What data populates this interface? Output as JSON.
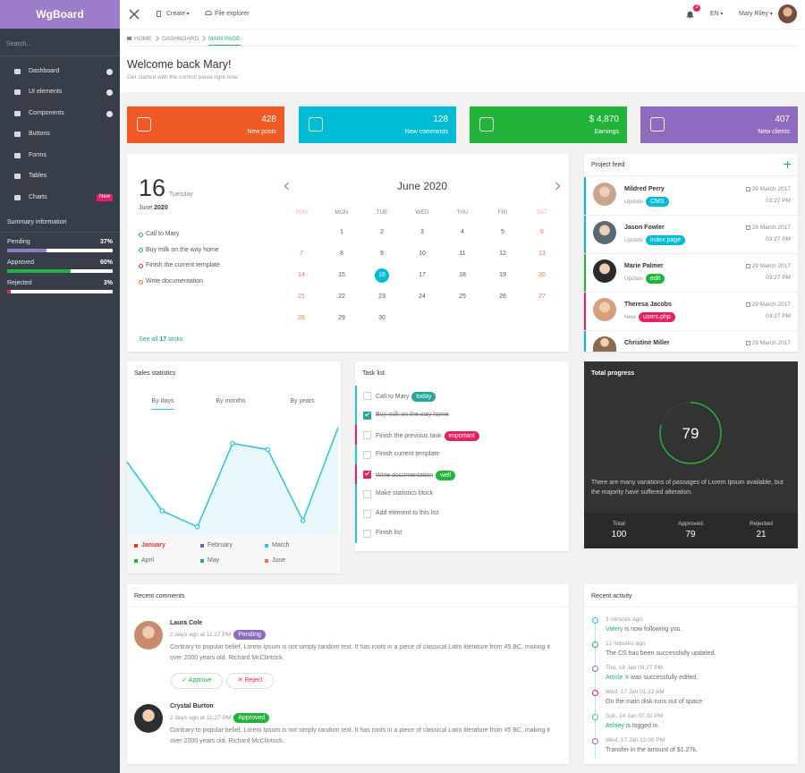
{
  "sidebar": {
    "brand": "WgBoard",
    "search": "Search...",
    "menu": [
      "Dashboard",
      "UI elements",
      "Components",
      "Buttons",
      "Forms",
      "Tables",
      "Charts"
    ],
    "charts_badge": "New",
    "summary_title": "Summary information",
    "summary": [
      {
        "name": "Pending",
        "value": 37,
        "label": "37%",
        "color": "#8f7fc0"
      },
      {
        "name": "Approved",
        "value": 60,
        "label": "60%",
        "color": "#22b33a"
      },
      {
        "name": "Rejected",
        "value": 3,
        "label": "3%",
        "color": "#e91e63"
      }
    ]
  },
  "topbar": {
    "create": "Create",
    "file_explorer": "File explorer",
    "notifications": "3",
    "language": "EN",
    "user": "Mary Riley"
  },
  "breadcrumb": [
    "HOME",
    "DASHBOARD",
    "MAIN PAGE"
  ],
  "welcome": {
    "title": "Welcome back Mary!",
    "subtitle": "Get started with the control panel right now"
  },
  "stats": [
    {
      "value": "428",
      "label": "New posts",
      "color": "#f15a24"
    },
    {
      "value": "128",
      "label": "New comments",
      "color": "#00bcd4"
    },
    {
      "value": "$ 4,870",
      "label": "Earnings",
      "color": "#22b33a"
    },
    {
      "value": "407",
      "label": "New clients",
      "color": "#8e6bbf"
    }
  ],
  "calendar": {
    "day": "16",
    "weekday": "Tuesday",
    "month": "June",
    "year": "2020",
    "title": "June 2020",
    "weekdays": [
      "SUN",
      "MON",
      "TUE",
      "WED",
      "THU",
      "FRI",
      "SAT"
    ],
    "weeks": [
      [
        null,
        "1",
        "2",
        "3",
        "4",
        "5",
        "6"
      ],
      [
        "7",
        "8",
        "9",
        "10",
        "11",
        "12",
        "13"
      ],
      [
        "14",
        "15",
        "16",
        "17",
        "18",
        "19",
        "20"
      ],
      [
        "21",
        "22",
        "23",
        "24",
        "25",
        "26",
        "27"
      ],
      [
        "28",
        "29",
        "30",
        null,
        null,
        null,
        null
      ]
    ],
    "todos": [
      {
        "text": "Call to Mary",
        "color": "#26a69a"
      },
      {
        "text": "Buy milk on the way home",
        "color": "#26a69a"
      },
      {
        "text": "Finish the current template",
        "color": "#e91e63"
      },
      {
        "text": "Write documentation",
        "color": "#ff7043"
      }
    ],
    "see_all": "See all",
    "see_all_count": "17",
    "see_all_suffix": "tasks"
  },
  "project_feed": {
    "title": "Project feed",
    "items": [
      {
        "name": "Mildred Perry",
        "action": "Update",
        "tag": "CMS",
        "tag_color": "#00bcd4",
        "border": "#00bcd4",
        "date": "29 March 2017",
        "time": "03:27 PM"
      },
      {
        "name": "Jason Fowler",
        "action": "Update",
        "tag": "index page",
        "tag_color": "#00bcd4",
        "border": "#00bcd4",
        "date": "29 March 2017",
        "time": "03:27 PM"
      },
      {
        "name": "Marie Palmer",
        "action": "Update",
        "tag": "edit",
        "tag_color": "#22b33a",
        "border": "#22b33a",
        "date": "29 March 2017",
        "time": "03:27 PM"
      },
      {
        "name": "Theresa Jacobs",
        "action": "New",
        "tag": "users.php",
        "tag_color": "#e91e63",
        "border": "#e91e63",
        "date": "29 March 2017",
        "time": "03:27 PM"
      },
      {
        "name": "Christine Miller",
        "date": "29 March 2017",
        "border": "#00bcd4"
      }
    ]
  },
  "sales_statistics": {
    "title": "Sales statistics",
    "tabs": [
      "By days",
      "By months",
      "By years"
    ],
    "chart_data": {
      "type": "line",
      "values": [
        59,
        19,
        6,
        74,
        69,
        11,
        87
      ],
      "ylim": [
        0,
        100
      ],
      "color": "#26c6da"
    },
    "legend": [
      {
        "name": "January",
        "color": "#e53935"
      },
      {
        "name": "February",
        "color": "#7e57c2"
      },
      {
        "name": "March",
        "color": "#26c6da"
      },
      {
        "name": "April",
        "color": "#22b33a"
      },
      {
        "name": "May",
        "color": "#26a69a"
      },
      {
        "name": "June",
        "color": "#ff7043"
      }
    ]
  },
  "task_list": {
    "title": "Task list",
    "tasks": [
      {
        "text": "Call to Mary",
        "tag": "today",
        "tag_color": "#26a69a",
        "border": "#26c6da"
      },
      {
        "text": "Buy milk on the way home",
        "checked": true,
        "check_color": "#26a69a",
        "border": "#26c6da"
      },
      {
        "text": "Finish the previous task",
        "tag": "important",
        "tag_color": "#e91e63",
        "border": "#e91e63"
      },
      {
        "text": "Finish current template",
        "border": "#26c6da"
      },
      {
        "text": "Write documentation",
        "checked": true,
        "check_color": "#e91e63",
        "tag": "well",
        "tag_color": "#22b33a",
        "border": "#e91e63"
      },
      {
        "text": "Make statistics block",
        "border": "#26c6da"
      },
      {
        "text": "Add element to this list",
        "border": "#26c6da"
      },
      {
        "text": "Finish list",
        "border": "#26c6da"
      }
    ]
  },
  "total_progress": {
    "title": "Total progress",
    "value": 79,
    "text": "There are many variations of passages of Lorem Ipsum available, but the majority have suffered alteration.",
    "stats": [
      {
        "label": "Total",
        "value": 100
      },
      {
        "label": "Approved",
        "value": 79
      },
      {
        "label": "Rejected",
        "value": 21
      }
    ]
  },
  "recent_comments": {
    "title": "Recent comments",
    "approve": "Approve",
    "reject": "Reject",
    "comments": [
      {
        "name": "Laura Cole",
        "time": "2 days ago at 11:27 PM",
        "badge": "Pending",
        "badge_color": "#8e6bbf",
        "text": "Contrary to popular belief, Lorem Ipsum is not simply random text. It has roots in a piece of classical Latin literature from 45 BC, making it over 2000 years old. Richard McClintock."
      },
      {
        "name": "Crystal Burton",
        "time": "2 days ago at 11:27 PM",
        "badge": "Approved",
        "badge_color": "#22b33a",
        "text": "Contrary to popular belief, Lorem Ipsum is not simply random text. It has roots in a piece of classical Latin literature from 45 BC, making it over 2000 years old. Richard McClintock."
      }
    ]
  },
  "recent_activity": {
    "title": "Recent activity",
    "items": [
      {
        "time": "3 minutes ago",
        "link": "Valery",
        "text": " is now following you.",
        "color": "#26c6da"
      },
      {
        "time": "12 minutes ago",
        "text": "The CS has been successfully updated.",
        "color": "#22b33a"
      },
      {
        "time": "Thu, 18 Jan 09:27 PM",
        "link": "Article X",
        "text": " was successfully edited.",
        "color": "#8e6bbf"
      },
      {
        "time": "Wed, 17 Jan 01:12 AM",
        "text": "On the main disk runs out of space",
        "color": "#e91e63"
      },
      {
        "time": "Sun, 14 Jan 07:32 PM",
        "link": "Ashley",
        "text": " is logged in.",
        "color": "#26c6da"
      },
      {
        "time": "Wed, 17 Jan 12:00 PM",
        "text": "Transfer in the amount of $1.27k.",
        "color": "#8e6bbf"
      }
    ]
  }
}
